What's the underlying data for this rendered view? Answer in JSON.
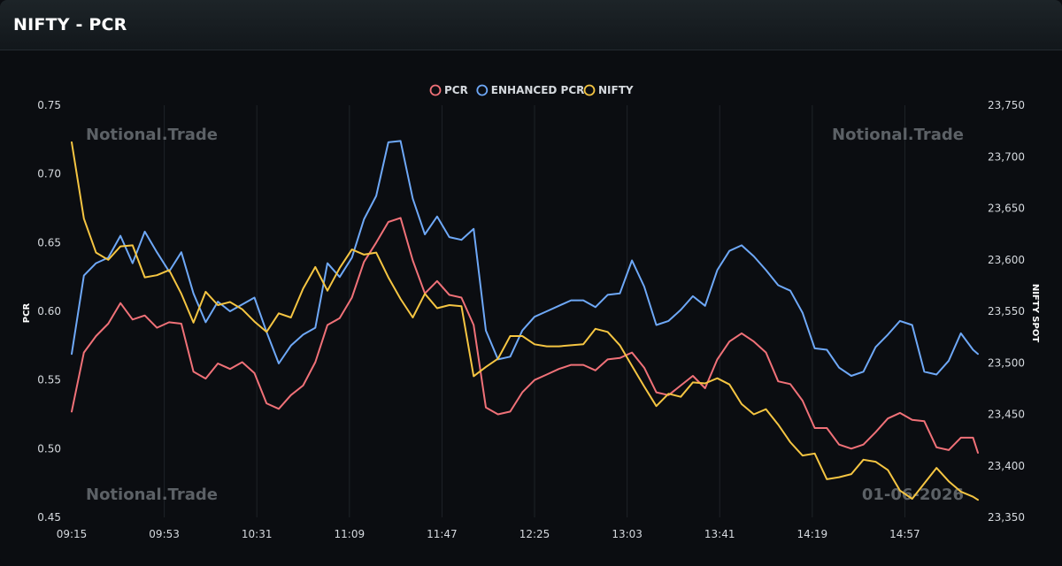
{
  "header": {
    "title": "NIFTY - PCR"
  },
  "watermarks": {
    "brand": "Notional.Trade",
    "date": "01-06-2026"
  },
  "colors": {
    "pcr": "#f07178",
    "enhanced_pcr": "#6ea8f7",
    "nifty": "#f5c542",
    "grid": "#1f2328"
  },
  "chart_data": {
    "type": "line",
    "xlabel": "",
    "ylabel": "PCR",
    "y2label": "NIFTY SPOT",
    "ylim": [
      0.45,
      0.75
    ],
    "y2lim": [
      23350,
      23750
    ],
    "yticks": [
      "0.45",
      "0.50",
      "0.55",
      "0.60",
      "0.65",
      "0.70",
      "0.75"
    ],
    "y2ticks": [
      "23,350",
      "23,400",
      "23,450",
      "23,500",
      "23,550",
      "23,600",
      "23,650",
      "23,700",
      "23,750"
    ],
    "xticks": [
      "09:15",
      "09:53",
      "10:31",
      "11:09",
      "11:47",
      "12:25",
      "13:03",
      "13:41",
      "14:19",
      "14:57"
    ],
    "x_start": "09:15",
    "x_end": "15:27",
    "grid": true,
    "legend_position": "top-center",
    "series": [
      {
        "name": "PCR",
        "axis": "left",
        "points": [
          [
            "09:15",
            0.527
          ],
          [
            "09:20",
            0.57
          ],
          [
            "09:25",
            0.582
          ],
          [
            "09:30",
            0.591
          ],
          [
            "09:35",
            0.606
          ],
          [
            "09:40",
            0.594
          ],
          [
            "09:45",
            0.597
          ],
          [
            "09:50",
            0.588
          ],
          [
            "09:55",
            0.592
          ],
          [
            "10:00",
            0.591
          ],
          [
            "10:05",
            0.556
          ],
          [
            "10:10",
            0.551
          ],
          [
            "10:15",
            0.562
          ],
          [
            "10:20",
            0.558
          ],
          [
            "10:25",
            0.563
          ],
          [
            "10:30",
            0.555
          ],
          [
            "10:35",
            0.533
          ],
          [
            "10:40",
            0.529
          ],
          [
            "10:45",
            0.539
          ],
          [
            "10:50",
            0.546
          ],
          [
            "10:55",
            0.563
          ],
          [
            "11:00",
            0.59
          ],
          [
            "11:05",
            0.595
          ],
          [
            "11:10",
            0.61
          ],
          [
            "11:15",
            0.636
          ],
          [
            "11:20",
            0.65
          ],
          [
            "11:25",
            0.665
          ],
          [
            "11:30",
            0.668
          ],
          [
            "11:35",
            0.637
          ],
          [
            "11:40",
            0.613
          ],
          [
            "11:45",
            0.622
          ],
          [
            "11:50",
            0.612
          ],
          [
            "11:55",
            0.61
          ],
          [
            "12:00",
            0.59
          ],
          [
            "12:05",
            0.53
          ],
          [
            "12:10",
            0.525
          ],
          [
            "12:15",
            0.527
          ],
          [
            "12:20",
            0.541
          ],
          [
            "12:25",
            0.55
          ],
          [
            "12:30",
            0.554
          ],
          [
            "12:35",
            0.558
          ],
          [
            "12:40",
            0.561
          ],
          [
            "12:45",
            0.561
          ],
          [
            "12:50",
            0.557
          ],
          [
            "12:55",
            0.565
          ],
          [
            "13:00",
            0.566
          ],
          [
            "13:05",
            0.57
          ],
          [
            "13:10",
            0.559
          ],
          [
            "13:15",
            0.541
          ],
          [
            "13:20",
            0.539
          ],
          [
            "13:25",
            0.546
          ],
          [
            "13:30",
            0.553
          ],
          [
            "13:35",
            0.544
          ],
          [
            "13:40",
            0.565
          ],
          [
            "13:45",
            0.578
          ],
          [
            "13:50",
            0.584
          ],
          [
            "13:55",
            0.578
          ],
          [
            "14:00",
            0.57
          ],
          [
            "14:05",
            0.549
          ],
          [
            "14:10",
            0.547
          ],
          [
            "14:15",
            0.535
          ],
          [
            "14:20",
            0.515
          ],
          [
            "14:25",
            0.515
          ],
          [
            "14:30",
            0.503
          ],
          [
            "14:35",
            0.5
          ],
          [
            "14:40",
            0.503
          ],
          [
            "14:45",
            0.512
          ],
          [
            "14:50",
            0.522
          ],
          [
            "14:55",
            0.526
          ],
          [
            "15:00",
            0.521
          ],
          [
            "15:05",
            0.52
          ],
          [
            "15:10",
            0.501
          ],
          [
            "15:15",
            0.499
          ],
          [
            "15:20",
            0.508
          ],
          [
            "15:25",
            0.508
          ],
          [
            "15:27",
            0.497
          ]
        ]
      },
      {
        "name": "ENHANCED PCR",
        "axis": "left",
        "points": [
          [
            "09:15",
            0.569
          ],
          [
            "09:20",
            0.626
          ],
          [
            "09:25",
            0.635
          ],
          [
            "09:30",
            0.639
          ],
          [
            "09:35",
            0.655
          ],
          [
            "09:40",
            0.635
          ],
          [
            "09:45",
            0.658
          ],
          [
            "09:50",
            0.643
          ],
          [
            "09:55",
            0.629
          ],
          [
            "10:00",
            0.643
          ],
          [
            "10:05",
            0.613
          ],
          [
            "10:10",
            0.592
          ],
          [
            "10:15",
            0.607
          ],
          [
            "10:20",
            0.6
          ],
          [
            "10:25",
            0.605
          ],
          [
            "10:30",
            0.61
          ],
          [
            "10:35",
            0.585
          ],
          [
            "10:40",
            0.562
          ],
          [
            "10:45",
            0.575
          ],
          [
            "10:50",
            0.583
          ],
          [
            "10:55",
            0.588
          ],
          [
            "11:00",
            0.635
          ],
          [
            "11:05",
            0.625
          ],
          [
            "11:10",
            0.639
          ],
          [
            "11:15",
            0.667
          ],
          [
            "11:20",
            0.684
          ],
          [
            "11:25",
            0.723
          ],
          [
            "11:30",
            0.724
          ],
          [
            "11:35",
            0.682
          ],
          [
            "11:40",
            0.656
          ],
          [
            "11:45",
            0.669
          ],
          [
            "11:50",
            0.654
          ],
          [
            "11:55",
            0.652
          ],
          [
            "12:00",
            0.66
          ],
          [
            "12:05",
            0.586
          ],
          [
            "12:10",
            0.565
          ],
          [
            "12:15",
            0.567
          ],
          [
            "12:20",
            0.586
          ],
          [
            "12:25",
            0.596
          ],
          [
            "12:30",
            0.6
          ],
          [
            "12:35",
            0.604
          ],
          [
            "12:40",
            0.608
          ],
          [
            "12:45",
            0.608
          ],
          [
            "12:50",
            0.603
          ],
          [
            "12:55",
            0.612
          ],
          [
            "13:00",
            0.613
          ],
          [
            "13:05",
            0.637
          ],
          [
            "13:10",
            0.618
          ],
          [
            "13:15",
            0.59
          ],
          [
            "13:20",
            0.593
          ],
          [
            "13:25",
            0.601
          ],
          [
            "13:30",
            0.611
          ],
          [
            "13:35",
            0.604
          ],
          [
            "13:40",
            0.63
          ],
          [
            "13:45",
            0.644
          ],
          [
            "13:50",
            0.648
          ],
          [
            "13:55",
            0.64
          ],
          [
            "14:00",
            0.63
          ],
          [
            "14:05",
            0.619
          ],
          [
            "14:10",
            0.615
          ],
          [
            "14:15",
            0.599
          ],
          [
            "14:20",
            0.573
          ],
          [
            "14:25",
            0.572
          ],
          [
            "14:30",
            0.559
          ],
          [
            "14:35",
            0.553
          ],
          [
            "14:40",
            0.556
          ],
          [
            "14:45",
            0.574
          ],
          [
            "14:50",
            0.583
          ],
          [
            "14:55",
            0.593
          ],
          [
            "15:00",
            0.59
          ],
          [
            "15:05",
            0.556
          ],
          [
            "15:10",
            0.554
          ],
          [
            "15:15",
            0.564
          ],
          [
            "15:20",
            0.584
          ],
          [
            "15:25",
            0.572
          ],
          [
            "15:27",
            0.569
          ]
        ]
      },
      {
        "name": "NIFTY",
        "axis": "right",
        "points": [
          [
            "09:15",
            23714
          ],
          [
            "09:20",
            23640
          ],
          [
            "09:25",
            23607
          ],
          [
            "09:30",
            23600
          ],
          [
            "09:35",
            23613
          ],
          [
            "09:40",
            23614
          ],
          [
            "09:45",
            23583
          ],
          [
            "09:50",
            23585
          ],
          [
            "09:55",
            23590
          ],
          [
            "10:00",
            23567
          ],
          [
            "10:05",
            23539
          ],
          [
            "10:10",
            23569
          ],
          [
            "10:15",
            23556
          ],
          [
            "10:20",
            23559
          ],
          [
            "10:25",
            23552
          ],
          [
            "10:30",
            23540
          ],
          [
            "10:35",
            23530
          ],
          [
            "10:40",
            23548
          ],
          [
            "10:45",
            23544
          ],
          [
            "10:50",
            23572
          ],
          [
            "10:55",
            23593
          ],
          [
            "11:00",
            23570
          ],
          [
            "11:05",
            23592
          ],
          [
            "11:10",
            23610
          ],
          [
            "11:15",
            23605
          ],
          [
            "11:20",
            23607
          ],
          [
            "11:25",
            23583
          ],
          [
            "11:30",
            23562
          ],
          [
            "11:35",
            23544
          ],
          [
            "11:40",
            23567
          ],
          [
            "11:45",
            23553
          ],
          [
            "11:50",
            23556
          ],
          [
            "11:55",
            23555
          ],
          [
            "12:00",
            23487
          ],
          [
            "12:05",
            23496
          ],
          [
            "12:10",
            23504
          ],
          [
            "12:15",
            23526
          ],
          [
            "12:20",
            23526
          ],
          [
            "12:25",
            23518
          ],
          [
            "12:30",
            23516
          ],
          [
            "12:35",
            23516
          ],
          [
            "12:40",
            23517
          ],
          [
            "12:45",
            23518
          ],
          [
            "12:50",
            23533
          ],
          [
            "12:55",
            23530
          ],
          [
            "13:00",
            23517
          ],
          [
            "13:05",
            23497
          ],
          [
            "13:10",
            23477
          ],
          [
            "13:15",
            23458
          ],
          [
            "13:20",
            23470
          ],
          [
            "13:25",
            23467
          ],
          [
            "13:30",
            23481
          ],
          [
            "13:35",
            23480
          ],
          [
            "13:40",
            23485
          ],
          [
            "13:45",
            23479
          ],
          [
            "13:50",
            23460
          ],
          [
            "13:55",
            23450
          ],
          [
            "14:00",
            23455
          ],
          [
            "14:05",
            23440
          ],
          [
            "14:10",
            23423
          ],
          [
            "14:15",
            23410
          ],
          [
            "14:20",
            23412
          ],
          [
            "14:25",
            23387
          ],
          [
            "14:30",
            23389
          ],
          [
            "14:35",
            23392
          ],
          [
            "14:40",
            23406
          ],
          [
            "14:45",
            23404
          ],
          [
            "14:50",
            23396
          ],
          [
            "14:55",
            23376
          ],
          [
            "15:00",
            23368
          ],
          [
            "15:05",
            23383
          ],
          [
            "15:10",
            23398
          ],
          [
            "15:15",
            23385
          ],
          [
            "15:20",
            23375
          ],
          [
            "15:25",
            23370
          ],
          [
            "15:27",
            23367
          ]
        ]
      }
    ]
  }
}
